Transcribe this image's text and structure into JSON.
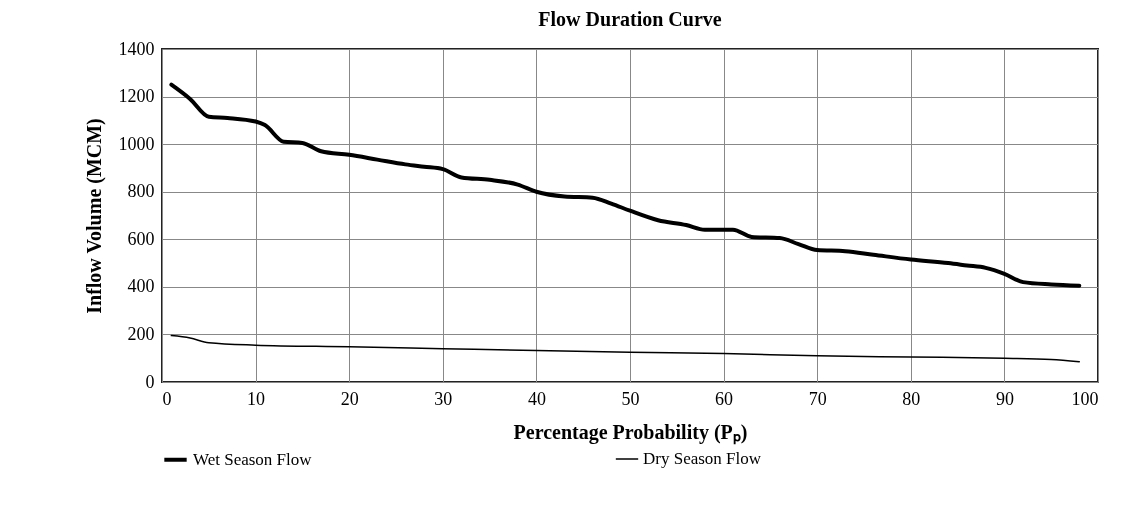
{
  "chart_data": {
    "type": "line",
    "title": "Flow Duration Curve",
    "xlabel": "Percentage Probability (Pₚ)",
    "ylabel": "Inflow Volume (MCM)",
    "xlim": [
      0,
      100
    ],
    "xticks": [
      0,
      10,
      20,
      30,
      40,
      50,
      60,
      70,
      80,
      90,
      100
    ],
    "ylim": [
      0,
      1400
    ],
    "yticks": [
      0,
      200,
      400,
      600,
      800,
      1000,
      1200,
      1400
    ],
    "grid": true,
    "legend": "bottom",
    "marker": "none",
    "line_style": "solid",
    "series": [
      {
        "name": "Wet Season Flow",
        "color": "#000000",
        "x": [
          1,
          3,
          5,
          7,
          10,
          11,
          13,
          15,
          17,
          20,
          23,
          26,
          28,
          30,
          32,
          35,
          38,
          40,
          43,
          46,
          48,
          50,
          53,
          56,
          58,
          61,
          63,
          66,
          68,
          70,
          73,
          76,
          80,
          84,
          86,
          88,
          90,
          92,
          95,
          98
        ],
        "values": [
          1250,
          1190,
          1115,
          1110,
          1095,
          1080,
          1010,
          1005,
          970,
          955,
          935,
          915,
          905,
          895,
          860,
          850,
          830,
          800,
          780,
          775,
          750,
          720,
          680,
          660,
          640,
          640,
          610,
          605,
          580,
          555,
          550,
          535,
          515,
          500,
          490,
          480,
          455,
          420,
          410,
          405
        ]
      },
      {
        "name": "Dry Season Flow",
        "color": "#000000",
        "x": [
          1,
          3,
          5,
          10,
          20,
          30,
          40,
          50,
          60,
          70,
          80,
          90,
          95,
          98
        ],
        "values": [
          195,
          185,
          165,
          155,
          148,
          140,
          132,
          125,
          120,
          110,
          105,
          100,
          95,
          85
        ]
      }
    ]
  }
}
